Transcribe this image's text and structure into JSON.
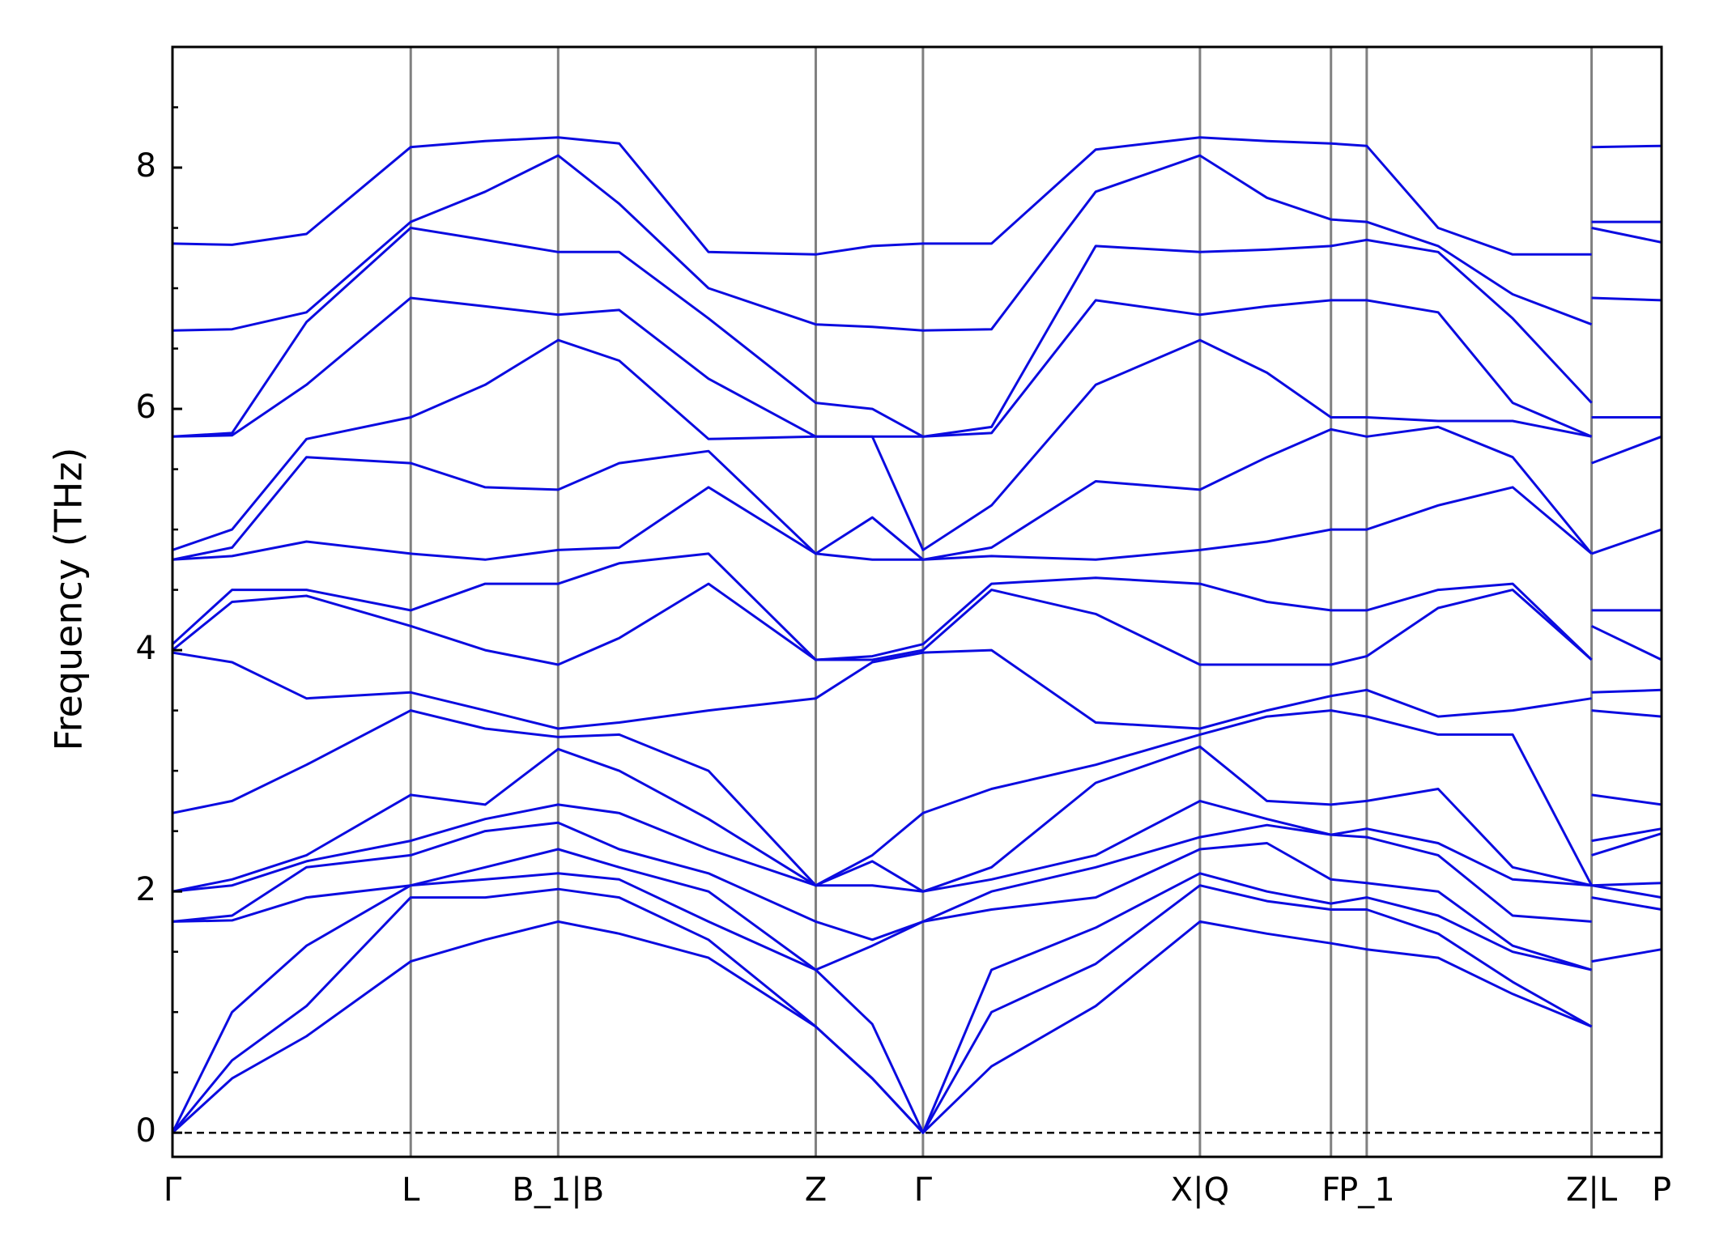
{
  "chart_data": {
    "type": "line",
    "ylabel": "Frequency (THz)",
    "x": [
      0,
      0.04,
      0.09,
      0.16,
      0.21,
      0.259,
      0.3,
      0.36,
      0.432,
      0.47,
      0.504,
      0.55,
      0.62,
      0.69,
      0.735,
      0.778,
      0.802,
      0.85,
      0.9,
      0.953,
      0.953,
      0.953,
      1
    ],
    "xlim": [
      0,
      1
    ],
    "xticks": [
      {
        "value": 0,
        "label": "Γ"
      },
      {
        "value": 0.16,
        "label": "L"
      },
      {
        "value": 0.259,
        "label": "B_1|B"
      },
      {
        "value": 0.432,
        "label": "Z"
      },
      {
        "value": 0.504,
        "label": "Γ"
      },
      {
        "value": 0.69,
        "label": "X|Q"
      },
      {
        "value": 0.778,
        "label": "F"
      },
      {
        "value": 0.802,
        "label": "P_1"
      },
      {
        "value": 0.953,
        "label": "Z|L"
      },
      {
        "value": 1,
        "label": "P"
      }
    ],
    "ylim": [
      -0.2,
      9
    ],
    "yticks": [
      0,
      2,
      4,
      6,
      8
    ],
    "yminorticks": [
      0.5,
      1,
      1.5,
      2.5,
      3,
      3.5,
      4.5,
      5,
      5.5,
      6.5,
      7,
      7.5,
      8.5
    ],
    "reference_line": 0,
    "color": "#0b0be0",
    "series": [
      {
        "values": [
          0,
          0.45,
          0.8,
          1.42,
          1.6,
          1.75,
          1.65,
          1.45,
          0.88,
          0.45,
          0,
          0.55,
          1.05,
          1.75,
          1.65,
          1.57,
          1.52,
          1.45,
          1.15,
          0.88,
          null,
          1.42,
          1.52
        ]
      },
      {
        "values": [
          0,
          0.6,
          1.05,
          1.95,
          1.95,
          2.02,
          1.95,
          1.6,
          0.88,
          0.45,
          0,
          1.0,
          1.4,
          2.05,
          1.92,
          1.85,
          1.85,
          1.65,
          1.25,
          0.88,
          null,
          1.95,
          1.85
        ]
      },
      {
        "values": [
          0,
          1.0,
          1.55,
          2.05,
          2.1,
          2.15,
          2.1,
          1.75,
          1.35,
          0.9,
          0,
          1.35,
          1.7,
          2.15,
          2.0,
          1.9,
          1.95,
          1.8,
          1.5,
          1.35,
          null,
          2.05,
          1.95
        ]
      },
      {
        "values": [
          1.75,
          1.76,
          1.95,
          2.05,
          2.2,
          2.35,
          2.2,
          2.0,
          1.35,
          1.55,
          1.75,
          1.85,
          1.95,
          2.35,
          2.4,
          2.1,
          2.07,
          2.0,
          1.55,
          1.35,
          null,
          2.05,
          2.07
        ]
      },
      {
        "values": [
          1.75,
          1.8,
          2.2,
          2.3,
          2.5,
          2.57,
          2.35,
          2.15,
          1.75,
          1.6,
          1.75,
          2.0,
          2.2,
          2.45,
          2.55,
          2.47,
          2.45,
          2.3,
          1.8,
          1.75,
          null,
          2.3,
          2.48
        ]
      },
      {
        "values": [
          2.0,
          2.05,
          2.25,
          2.42,
          2.6,
          2.72,
          2.65,
          2.35,
          2.05,
          2.05,
          2.0,
          2.1,
          2.3,
          2.75,
          2.6,
          2.47,
          2.52,
          2.4,
          2.1,
          2.05,
          null,
          2.42,
          2.52
        ]
      },
      {
        "values": [
          2.0,
          2.1,
          2.3,
          2.8,
          2.72,
          3.18,
          3.0,
          2.6,
          2.05,
          2.25,
          2.0,
          2.2,
          2.9,
          3.2,
          2.75,
          2.72,
          2.75,
          2.85,
          2.2,
          2.05,
          null,
          2.8,
          2.72
        ]
      },
      {
        "values": [
          2.65,
          2.75,
          3.05,
          3.5,
          3.35,
          3.28,
          3.3,
          3.0,
          2.05,
          2.3,
          2.65,
          2.85,
          3.05,
          3.3,
          3.45,
          3.5,
          3.45,
          3.3,
          3.3,
          2.05,
          null,
          3.5,
          3.45
        ]
      },
      {
        "values": [
          3.98,
          3.9,
          3.6,
          3.65,
          3.5,
          3.35,
          3.4,
          3.5,
          3.6,
          3.9,
          3.98,
          4.0,
          3.4,
          3.35,
          3.5,
          3.62,
          3.67,
          3.45,
          3.5,
          3.6,
          null,
          3.65,
          3.67
        ]
      },
      {
        "values": [
          4.0,
          4.4,
          4.45,
          4.2,
          4.0,
          3.88,
          4.1,
          4.55,
          3.92,
          3.92,
          4.0,
          4.5,
          4.3,
          3.88,
          3.88,
          3.88,
          3.95,
          4.35,
          4.5,
          3.92,
          null,
          4.2,
          3.92
        ]
      },
      {
        "values": [
          4.05,
          4.5,
          4.5,
          4.33,
          4.55,
          4.55,
          4.72,
          4.8,
          3.92,
          3.95,
          4.05,
          4.55,
          4.6,
          4.55,
          4.4,
          4.33,
          4.33,
          4.5,
          4.55,
          3.92,
          null,
          4.33,
          4.33
        ]
      },
      {
        "values": [
          4.75,
          4.78,
          4.9,
          4.8,
          4.75,
          4.83,
          4.85,
          5.35,
          4.8,
          4.75,
          4.75,
          4.78,
          4.75,
          4.83,
          4.9,
          5.0,
          5.0,
          5.2,
          5.35,
          4.8,
          null,
          4.8,
          5.0
        ]
      },
      {
        "values": [
          4.75,
          4.85,
          5.6,
          5.55,
          5.35,
          5.33,
          5.55,
          5.65,
          4.8,
          5.1,
          4.75,
          4.85,
          5.4,
          5.33,
          5.6,
          5.83,
          5.77,
          5.85,
          5.6,
          4.8,
          null,
          5.55,
          5.77
        ]
      },
      {
        "values": [
          4.83,
          5.0,
          5.75,
          5.93,
          6.2,
          6.57,
          6.4,
          5.75,
          5.77,
          5.77,
          4.83,
          5.2,
          6.2,
          6.57,
          6.3,
          5.93,
          5.93,
          5.9,
          5.9,
          5.77,
          null,
          5.93,
          5.93
        ]
      },
      {
        "values": [
          5.77,
          5.78,
          6.2,
          6.92,
          6.85,
          6.78,
          6.82,
          6.25,
          5.77,
          5.77,
          5.77,
          5.8,
          6.9,
          6.78,
          6.85,
          6.9,
          6.9,
          6.8,
          6.05,
          5.77,
          null,
          6.92,
          6.9
        ]
      },
      {
        "values": [
          5.77,
          5.8,
          6.72,
          7.5,
          7.4,
          7.3,
          7.3,
          6.75,
          6.05,
          6.0,
          5.77,
          5.85,
          7.35,
          7.3,
          7.32,
          7.35,
          7.4,
          7.3,
          6.75,
          6.05,
          null,
          7.5,
          7.38
        ]
      },
      {
        "values": [
          6.65,
          6.66,
          6.8,
          7.55,
          7.8,
          8.1,
          7.7,
          7.0,
          6.7,
          6.68,
          6.65,
          6.66,
          7.8,
          8.1,
          7.75,
          7.57,
          7.55,
          7.35,
          6.95,
          6.7,
          null,
          7.55,
          7.55
        ]
      },
      {
        "values": [
          7.37,
          7.36,
          7.45,
          8.17,
          8.22,
          8.25,
          8.2,
          7.3,
          7.28,
          7.35,
          7.37,
          7.37,
          8.15,
          8.25,
          8.22,
          8.2,
          8.18,
          7.5,
          7.28,
          7.28,
          null,
          8.17,
          8.18
        ]
      }
    ]
  }
}
